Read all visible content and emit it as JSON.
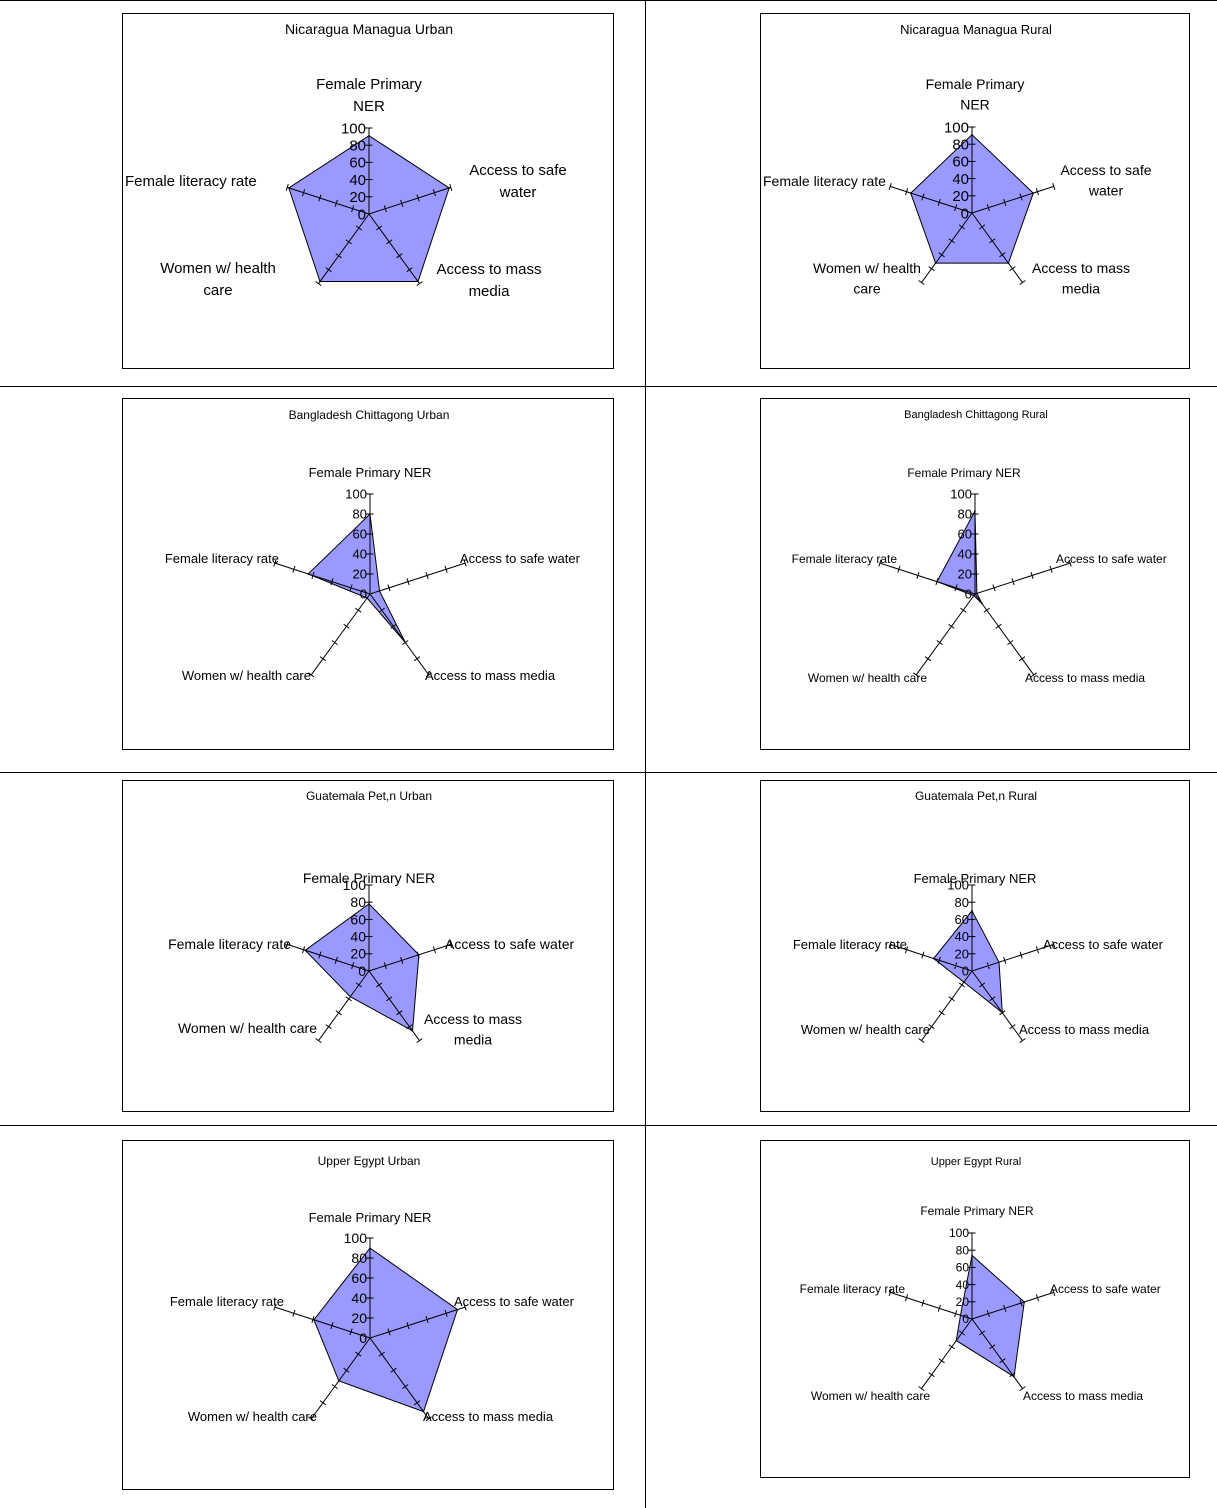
{
  "axes": [
    "Female Primary NER",
    "Access to safe water",
    "Access to mass media",
    "Women w/ health care",
    "Female literacy rate"
  ],
  "fill_color": "#9999ff",
  "line_color": "#000000",
  "chart_data": [
    {
      "type": "radar",
      "title": "Nicaragua Managua Urban",
      "axes": [
        "Female Primary\nNER",
        "Access to safe\nwater",
        "Access to mass\nmedia",
        "Women w/ health\ncare",
        "Female literacy rate"
      ],
      "rlim": [
        0,
        100
      ],
      "ticks": [
        "0",
        "20",
        "40",
        "60",
        "80",
        "100"
      ],
      "values": [
        91,
        98,
        97,
        97,
        98
      ]
    },
    {
      "type": "radar",
      "title": "Nicaragua Managua Rural",
      "axes": [
        "Female Primary\nNER",
        "Access to safe\nwater",
        "Access to mass\nmedia",
        "Women w/ health\ncare",
        "Female literacy rate"
      ],
      "rlim": [
        0,
        100
      ],
      "ticks": [
        "0",
        "20",
        "40",
        "60",
        "80",
        "100"
      ],
      "values": [
        91,
        75,
        72,
        72,
        75
      ]
    },
    {
      "type": "radar",
      "title": "Bangladesh Chittagong Urban",
      "axes": [
        "Female Primary NER",
        "Access to safe water",
        "Access to mass media",
        "Women w/ health care",
        "Female literacy rate"
      ],
      "rlim": [
        0,
        100
      ],
      "ticks": [
        "0",
        "20",
        "40",
        "60",
        "80",
        "100"
      ],
      "values": [
        80,
        10,
        60,
        5,
        65
      ]
    },
    {
      "type": "radar",
      "title": "Bangladesh Chittagong Rural",
      "axes": [
        "Female Primary NER",
        "Access to safe water",
        "Access to mass media",
        "Women w/ health care",
        "Female literacy rate"
      ],
      "rlim": [
        0,
        100
      ],
      "ticks": [
        "0",
        "20",
        "40",
        "60",
        "80",
        "100"
      ],
      "values": [
        83,
        2,
        12,
        2,
        40
      ]
    },
    {
      "type": "radar",
      "title": "Guatemala Pet,n Urban",
      "axes": [
        "Female Primary NER",
        "Access to safe water",
        "Access to mass\nmedia",
        "Women w/ health care",
        "Female literacy rate"
      ],
      "rlim": [
        0,
        100
      ],
      "ticks": [
        "0",
        "20",
        "40",
        "60",
        "80",
        "100"
      ],
      "values": [
        78,
        61,
        86,
        37,
        78
      ]
    },
    {
      "type": "radar",
      "title": "Guatemala Pet,n Rural",
      "axes": [
        "Female Primary NER",
        "Access to safe water",
        "Access to mass media",
        "Women w/ health care",
        "Female literacy rate"
      ],
      "rlim": [
        0,
        100
      ],
      "ticks": [
        "0",
        "20",
        "40",
        "60",
        "80",
        "100"
      ],
      "values": [
        70,
        33,
        60,
        16,
        47
      ]
    },
    {
      "type": "radar",
      "title": "Upper Egypt Urban",
      "axes": [
        "Female Primary NER",
        "Access to safe water",
        "Access to mass media",
        "Women w/ health care",
        "Female literacy rate"
      ],
      "rlim": [
        0,
        100
      ],
      "ticks": [
        "0",
        "20",
        "40",
        "60",
        "80",
        "100"
      ],
      "values": [
        90,
        92,
        91,
        53,
        59
      ]
    },
    {
      "type": "radar",
      "title": "Upper Egypt Rural",
      "axes": [
        "Female Primary NER",
        "Access to safe water",
        "Access to mass media",
        "Women w/ health care",
        "Female literacy rate"
      ],
      "rlim": [
        0,
        100
      ],
      "ticks": [
        "0",
        "20",
        "40",
        "60",
        "80",
        "100"
      ],
      "values": [
        74,
        64,
        83,
        31,
        14
      ]
    }
  ]
}
